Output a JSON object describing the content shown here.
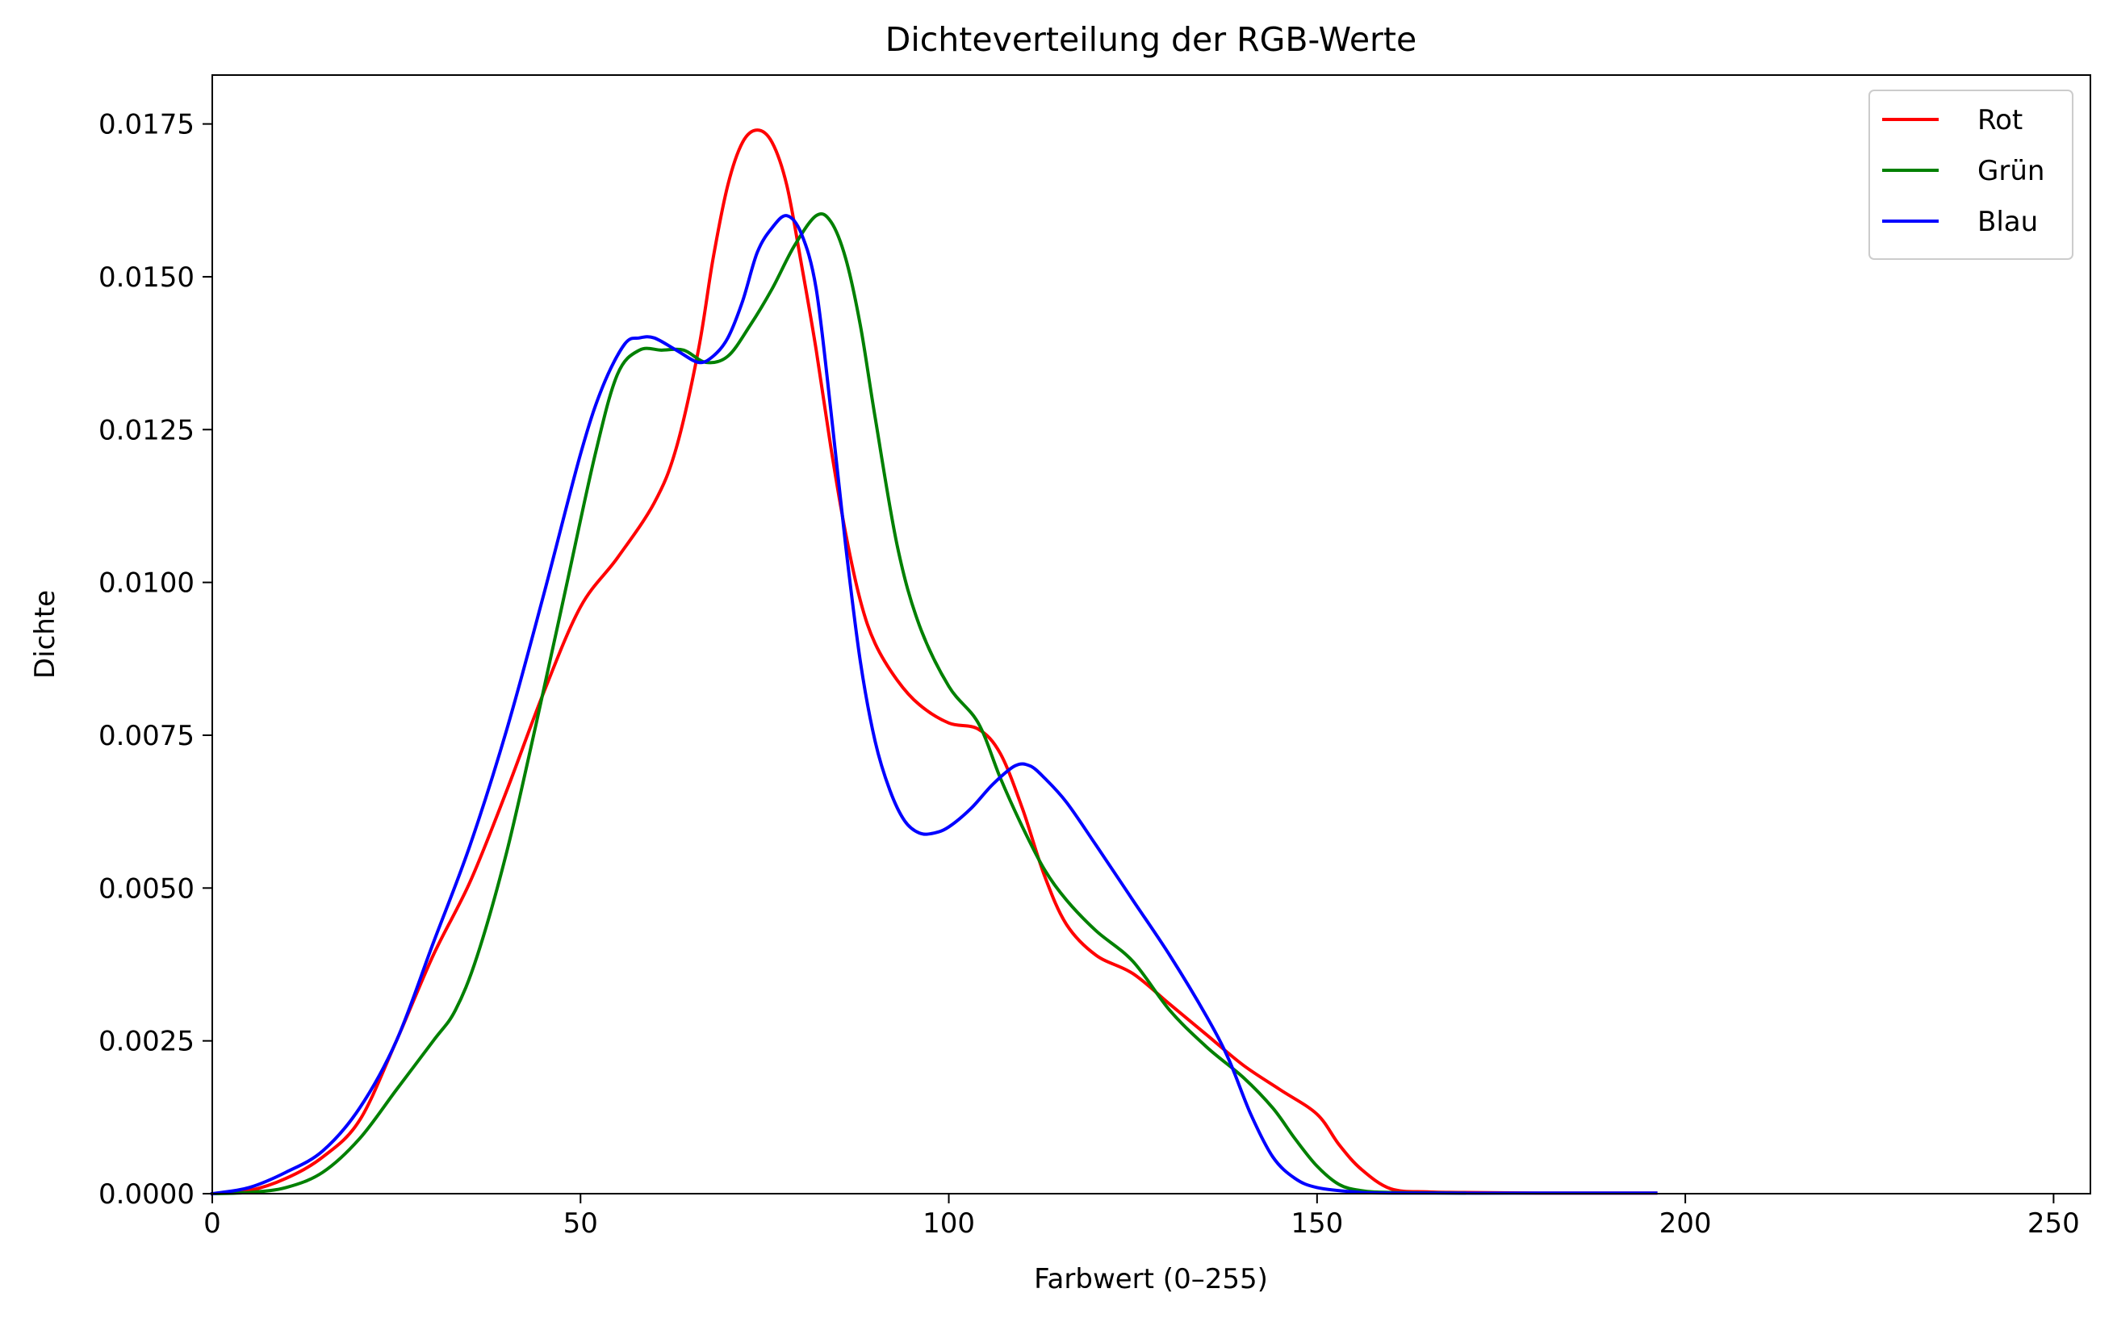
{
  "chart_data": {
    "type": "line",
    "title": "Dichteverteilung der RGB-Werte",
    "xlabel": "Farbwert (0–255)",
    "ylabel": "Dichte",
    "xlim": [
      0,
      255
    ],
    "ylim": [
      0,
      0.0183
    ],
    "xticks": [
      0,
      50,
      100,
      150,
      200,
      250
    ],
    "xtick_labels": [
      "0",
      "50",
      "100",
      "150",
      "200",
      "250"
    ],
    "yticks": [
      0,
      0.0025,
      0.005,
      0.0075,
      0.01,
      0.0125,
      0.015,
      0.0175
    ],
    "ytick_labels": [
      "0.0000",
      "0.0025",
      "0.0050",
      "0.0075",
      "0.0100",
      "0.0125",
      "0.0150",
      "0.0175"
    ],
    "grid": false,
    "legend_position": "top-right",
    "series": [
      {
        "name": "Rot",
        "color": "#ff0000",
        "x": [
          0,
          5,
          10,
          15,
          20,
          25,
          30,
          35,
          40,
          45,
          50,
          55,
          60,
          63,
          66,
          68,
          70,
          72,
          74,
          76,
          78,
          80,
          82,
          84,
          86,
          88,
          90,
          93,
          96,
          100,
          104,
          107,
          110,
          113,
          116,
          120,
          125,
          130,
          135,
          140,
          145,
          150,
          153,
          156,
          160,
          165,
          170,
          180,
          190,
          196
        ],
        "y": [
          0.0,
          5e-05,
          0.00025,
          0.0006,
          0.0012,
          0.0025,
          0.0039,
          0.0051,
          0.0066,
          0.0082,
          0.0096,
          0.0104,
          0.0113,
          0.0122,
          0.0138,
          0.0153,
          0.0165,
          0.0172,
          0.0174,
          0.0172,
          0.0165,
          0.0152,
          0.0138,
          0.0122,
          0.0108,
          0.0097,
          0.009,
          0.0084,
          0.008,
          0.0077,
          0.0076,
          0.0072,
          0.0063,
          0.0052,
          0.0044,
          0.0039,
          0.0036,
          0.0031,
          0.0026,
          0.0021,
          0.0017,
          0.0013,
          0.0008,
          0.0004,
          8e-05,
          3e-05,
          2e-05,
          1e-05,
          1e-05,
          1e-05
        ]
      },
      {
        "name": "Grün",
        "color": "#008000",
        "x": [
          0,
          5,
          10,
          15,
          20,
          25,
          30,
          33,
          36,
          40,
          44,
          48,
          52,
          55,
          58,
          61,
          64,
          67,
          70,
          73,
          76,
          79,
          82,
          84,
          86,
          88,
          90,
          93,
          96,
          100,
          104,
          107,
          110,
          113,
          116,
          120,
          125,
          130,
          135,
          140,
          144,
          147,
          150,
          153,
          156,
          160,
          170
        ],
        "y": [
          0.0,
          2e-05,
          0.0001,
          0.00035,
          0.0009,
          0.0017,
          0.0025,
          0.003,
          0.0039,
          0.0056,
          0.0077,
          0.0099,
          0.0121,
          0.0134,
          0.0138,
          0.0138,
          0.0138,
          0.0136,
          0.0137,
          0.0142,
          0.0148,
          0.0155,
          0.016,
          0.0159,
          0.0153,
          0.0142,
          0.0127,
          0.0106,
          0.0093,
          0.0083,
          0.0077,
          0.0068,
          0.006,
          0.0053,
          0.0048,
          0.0043,
          0.0038,
          0.003,
          0.0024,
          0.0019,
          0.0014,
          0.0009,
          0.00045,
          0.00015,
          5e-05,
          2e-05,
          1e-05
        ]
      },
      {
        "name": "Blau",
        "color": "#0000ff",
        "x": [
          0,
          5,
          10,
          15,
          20,
          25,
          30,
          35,
          40,
          45,
          50,
          53,
          56,
          58,
          60,
          63,
          66,
          68,
          70,
          72,
          74,
          76,
          78,
          80,
          82,
          84,
          86,
          88,
          90,
          92,
          94,
          96,
          98,
          100,
          103,
          106,
          109,
          111,
          113,
          116,
          120,
          125,
          130,
          135,
          138,
          141,
          144,
          147,
          150,
          155,
          160,
          180,
          196
        ],
        "y": [
          0.0,
          0.0001,
          0.00035,
          0.0007,
          0.0014,
          0.0025,
          0.0041,
          0.0057,
          0.0076,
          0.0098,
          0.0121,
          0.0132,
          0.0139,
          0.014,
          0.014,
          0.0138,
          0.0136,
          0.0137,
          0.014,
          0.0146,
          0.0154,
          0.0158,
          0.016,
          0.0157,
          0.0148,
          0.0128,
          0.0106,
          0.0087,
          0.0074,
          0.0066,
          0.0061,
          0.0059,
          0.0059,
          0.006,
          0.0063,
          0.0067,
          0.007,
          0.007,
          0.0068,
          0.0064,
          0.0057,
          0.0048,
          0.0039,
          0.0029,
          0.0022,
          0.0013,
          0.0006,
          0.00025,
          0.0001,
          3e-05,
          1e-05,
          1e-05,
          1e-05
        ]
      }
    ]
  }
}
